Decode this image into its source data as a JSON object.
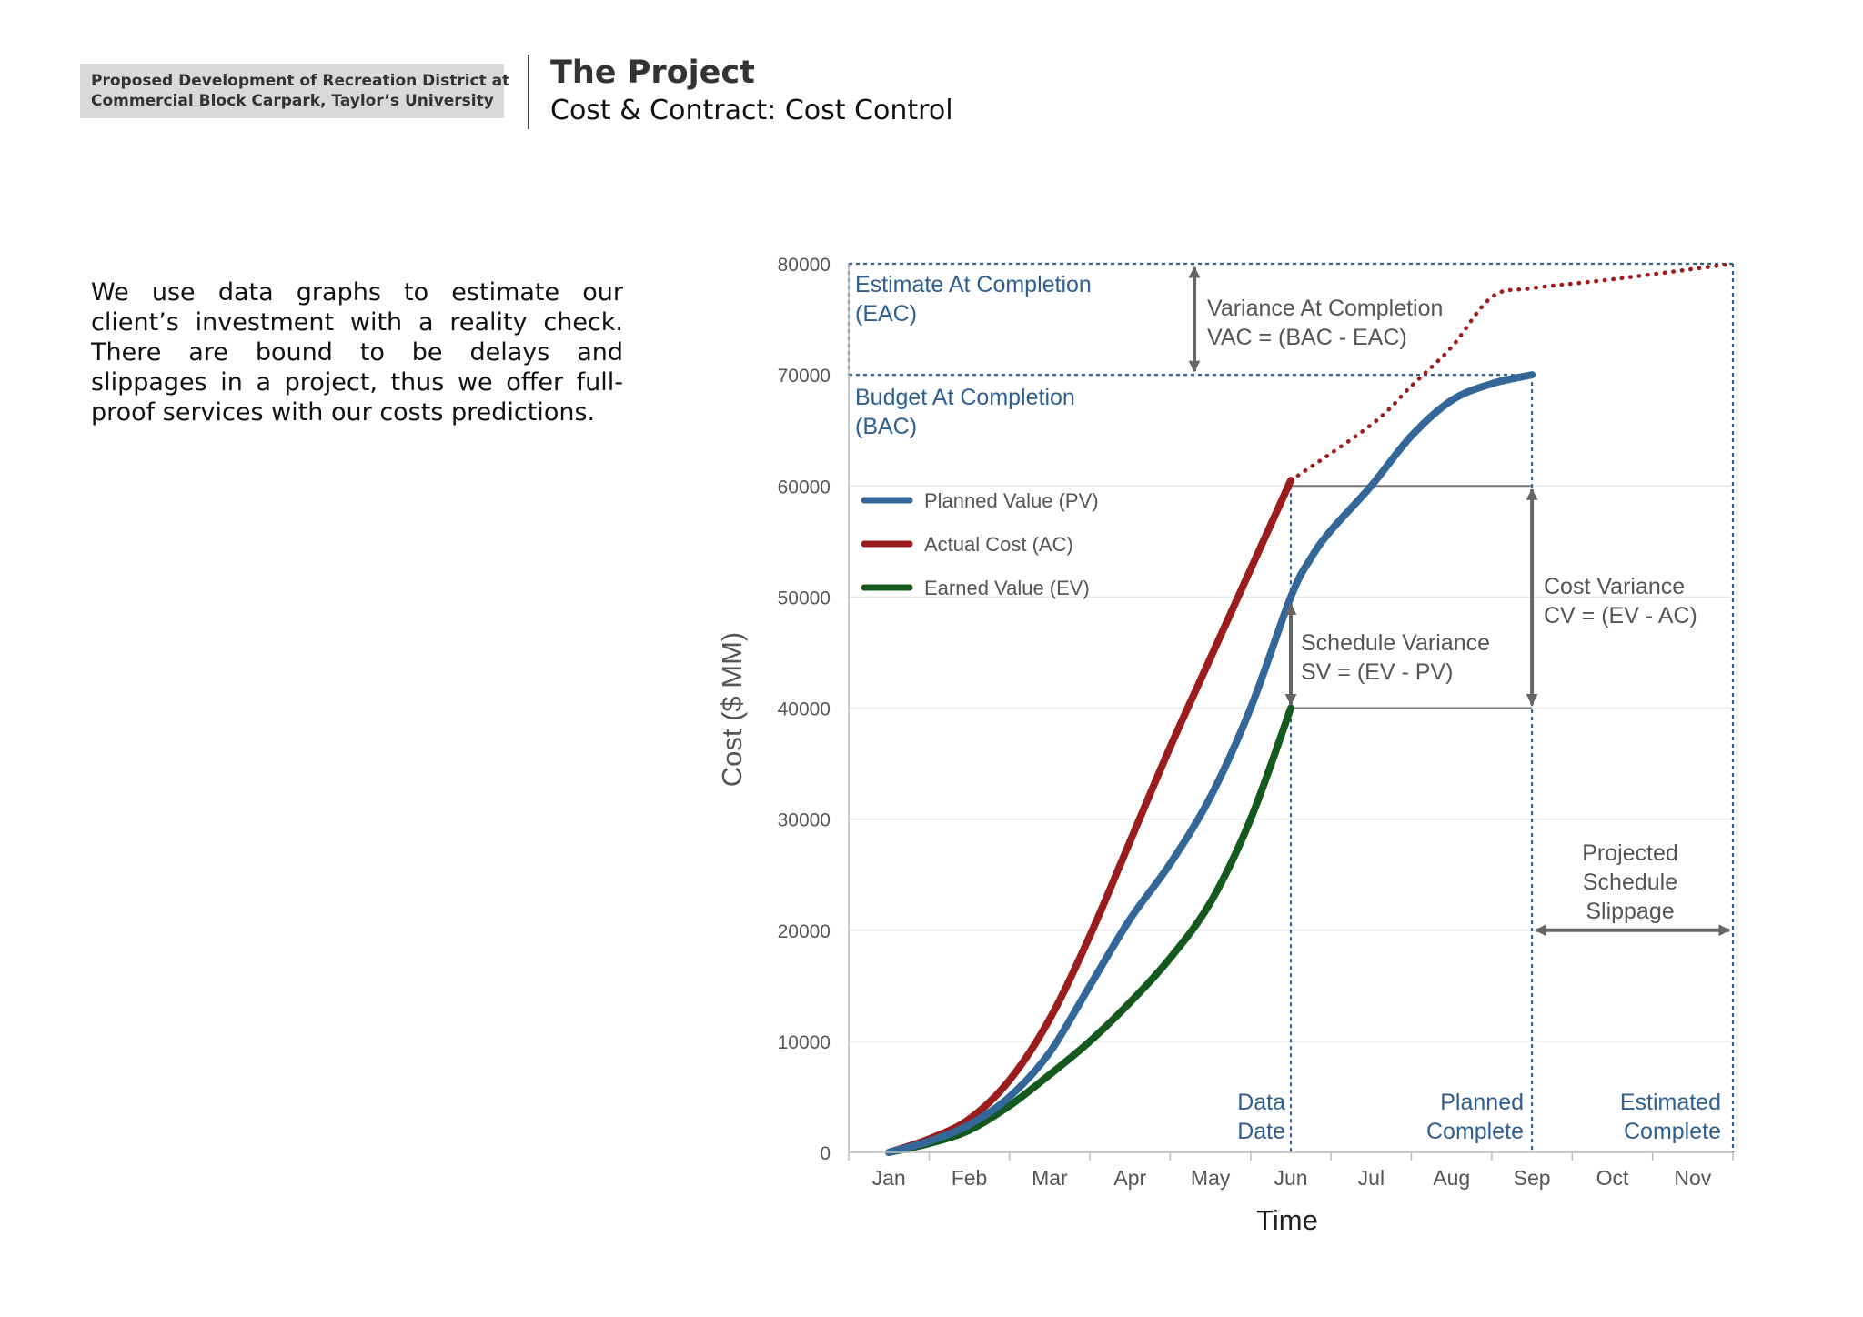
{
  "header": {
    "tag_line1": "Proposed Development of Recreation District at",
    "tag_line2": "Commercial Block Carpark, Taylor’s University",
    "title": "The Project",
    "subtitle": "Cost & Contract: Cost Control"
  },
  "body_text": "We use data graphs to estimate our client’s investment with a reality check. There are bound to be delays and slippages in a project, thus we offer full-proof services with our costs predictions.",
  "colors": {
    "pv": "#336699",
    "ac": "#9b1c1c",
    "ev": "#145a1e",
    "annotation_blue": "#2f5f8f",
    "annotation_gray": "#555555",
    "arrow": "#666666"
  },
  "chart_data": {
    "type": "line",
    "xlabel": "Time",
    "ylabel": "Cost ($ MM)",
    "categories": [
      "Jan",
      "Feb",
      "Mar",
      "Apr",
      "May",
      "Jun",
      "Jul",
      "Aug",
      "Sep",
      "Oct",
      "Nov"
    ],
    "yticks": [
      "0",
      "10000",
      "20000",
      "30000",
      "40000",
      "50000",
      "60000",
      "70000",
      "80000"
    ],
    "ylim": [
      0,
      80000
    ],
    "xlim": [
      0.5,
      11.5
    ],
    "grid": true,
    "legend_position": "top-left",
    "series": [
      {
        "name": "Planned Value (PV)",
        "key": "pv",
        "x": [
          1,
          1.5,
          2,
          2.5,
          3,
          3.5,
          4,
          4.5,
          5,
          5.5,
          6,
          6.25,
          6.5,
          7,
          7.5,
          8,
          8.5,
          9
        ],
        "y": [
          0,
          1000,
          2500,
          5000,
          9000,
          15000,
          21000,
          26000,
          32000,
          40000,
          50000,
          53500,
          56000,
          60000,
          64500,
          67700,
          69200,
          70000
        ]
      },
      {
        "name": "Actual Cost (AC)",
        "key": "ac",
        "x": [
          1,
          1.5,
          2,
          2.5,
          3,
          3.5,
          4,
          4.5,
          5,
          5.5,
          6
        ],
        "y": [
          0,
          1200,
          3000,
          6500,
          12000,
          19500,
          28000,
          36500,
          44500,
          52500,
          60500
        ]
      },
      {
        "name": "Earned Value (EV)",
        "key": "ev",
        "x": [
          1,
          1.5,
          2,
          2.5,
          3,
          3.5,
          4,
          4.5,
          5,
          5.5,
          6
        ],
        "y": [
          0,
          800,
          2000,
          4200,
          7000,
          10000,
          13500,
          17500,
          22500,
          30000,
          40000
        ]
      },
      {
        "name": "Estimate At Completion",
        "key": "eac_projection",
        "style": "dotted",
        "x": [
          6,
          7,
          7.5,
          8,
          8.5,
          9,
          10,
          11.5
        ],
        "y": [
          60500,
          65500,
          69000,
          72500,
          77000,
          77800,
          78600,
          80000
        ]
      }
    ],
    "reference_lines": {
      "bac": 70000,
      "eac": 80000,
      "data_date_x": 6,
      "planned_complete_x": 9,
      "estimated_complete_x": 11.5,
      "variance_box_top": 60000,
      "variance_box_bottom": 40000,
      "slippage_arrow_y": 20000
    },
    "annotations": {
      "eac_line1": "Estimate At Completion",
      "eac_line2": "(EAC)",
      "bac_line1": "Budget At Completion",
      "bac_line2": "(BAC)",
      "vac_line1": "Variance At Completion",
      "vac_line2": "VAC = (BAC - EAC)",
      "cv_line1": "Cost Variance",
      "cv_line2": "CV = (EV - AC)",
      "sv_line1": "Schedule Variance",
      "sv_line2": "SV = (EV - PV)",
      "slip_line1": "Projected",
      "slip_line2": "Schedule",
      "slip_line3": "Slippage",
      "data_date_line1": "Data",
      "data_date_line2": "Date",
      "planned_line1": "Planned",
      "planned_line2": "Complete",
      "estimated_line1": "Estimated",
      "estimated_line2": "Complete"
    }
  }
}
